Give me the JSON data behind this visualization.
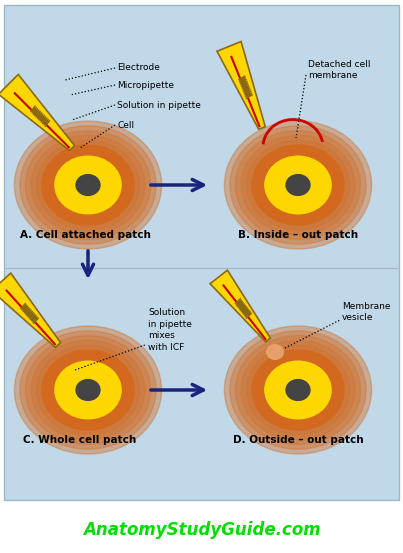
{
  "bg_color": "#c5dce8",
  "white_bg": "#ffffff",
  "cell_outer_color": "#d2691e",
  "cell_inner_color": "#ffd700",
  "cell_nucleus_color": "#444444",
  "pipette_yellow": "#ffd700",
  "pipette_outline": "#8b6914",
  "electrode_red": "#cc0000",
  "arrow_color": "#1a237e",
  "website_color": "#00dd00",
  "membrane_red": "#cc0000",
  "title_A": "A. Cell attached patch",
  "title_B": "B. Inside – out patch",
  "title_C": "C. Whole cell patch",
  "title_D": "D. Outside – out patch",
  "website_text": "AnatomyStudyGuide.com",
  "panel_bg": "#c0d8e8"
}
